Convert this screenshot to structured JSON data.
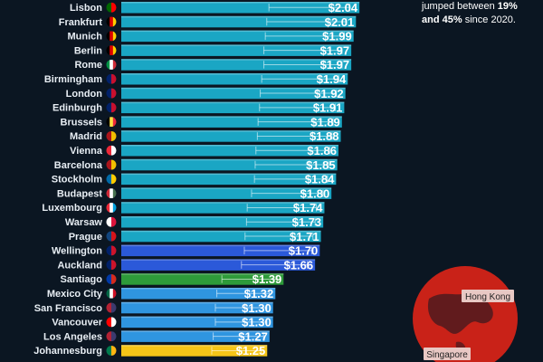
{
  "annotation": {
    "line1": "jumped between ",
    "low_pct": "19%",
    "mid": "and ",
    "high_pct": "45%",
    "tail": " since 2020."
  },
  "map": {
    "labels": [
      "Hong Kong",
      "Singapore"
    ]
  },
  "colors": {
    "europe": "#1aa6c4",
    "oceania": "#2b59d9",
    "south_america": "#2e9b3a",
    "north_america": "#2f95e0",
    "africa": "#f5c518",
    "background": "#0b1622",
    "map_fill": "#d42a1f"
  },
  "chart_data": {
    "type": "bar",
    "orientation": "horizontal",
    "categories": [
      "Lisbon",
      "Frankfurt",
      "Munich",
      "Berlin",
      "Rome",
      "Birmingham",
      "London",
      "Edinburgh",
      "Brussels",
      "Madrid",
      "Vienna",
      "Barcelona",
      "Stockholm",
      "Budapest",
      "Luxembourg",
      "Warsaw",
      "Prague",
      "Wellington",
      "Auckland",
      "Santiago",
      "Mexico City",
      "San Francisco",
      "Vancouver",
      "Los Angeles",
      "Johannesburg"
    ],
    "values": [
      2.04,
      2.01,
      1.99,
      1.97,
      1.97,
      1.94,
      1.92,
      1.91,
      1.89,
      1.88,
      1.86,
      1.85,
      1.84,
      1.8,
      1.74,
      1.73,
      1.71,
      1.7,
      1.66,
      1.39,
      1.32,
      1.3,
      1.3,
      1.27,
      1.25
    ],
    "value_labels": [
      "$2.04",
      "$2.01",
      "$1.99",
      "$1.97",
      "$1.97",
      "$1.94",
      "$1.92",
      "$1.91",
      "$1.89",
      "$1.88",
      "$1.86",
      "$1.85",
      "$1.84",
      "$1.80",
      "$1.74",
      "$1.73",
      "$1.71",
      "$1.70",
      "$1.66",
      "$1.39",
      "$1.32",
      "$1.30",
      "$1.30",
      "$1.27",
      "$1.25"
    ],
    "region": [
      "europe",
      "europe",
      "europe",
      "europe",
      "europe",
      "europe",
      "europe",
      "europe",
      "europe",
      "europe",
      "europe",
      "europe",
      "europe",
      "europe",
      "europe",
      "europe",
      "europe",
      "oceania",
      "oceania",
      "south_america",
      "north_america",
      "north_america",
      "north_america",
      "north_america",
      "africa"
    ],
    "flags": [
      "pt",
      "de",
      "de",
      "de",
      "it",
      "gb",
      "gb",
      "gb",
      "be",
      "es",
      "at",
      "es",
      "se",
      "hu",
      "lu",
      "pl",
      "cz",
      "nz",
      "nz",
      "cl",
      "mx",
      "us",
      "ca",
      "us",
      "za"
    ]
  }
}
